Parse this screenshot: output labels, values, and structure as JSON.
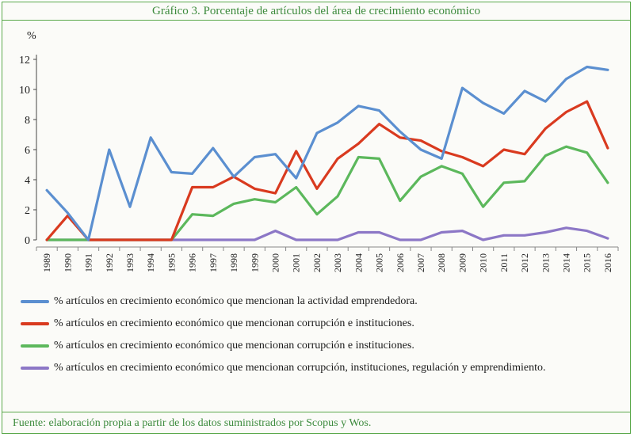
{
  "title": "Gráfico 3. Porcentaje de artículos del área de crecimiento económico",
  "source": "Fuente: elaboración propia a partir de los datos suministrados por Scopus y Wos.",
  "colors": {
    "frame": "#5aa84a",
    "title_text": "#3d8b3d"
  },
  "chart_data": {
    "type": "line",
    "ylabel": "%",
    "ylim": [
      0,
      12
    ],
    "yticks": [
      "0",
      "2",
      "4",
      "6",
      "8",
      "10",
      "12"
    ],
    "x": [
      "1989",
      "1990",
      "1991",
      "1992",
      "1993",
      "1994",
      "1995",
      "1996",
      "1997",
      "1998",
      "1999",
      "2000",
      "2001",
      "2002",
      "2003",
      "2004",
      "2005",
      "2006",
      "2007",
      "2008",
      "2009",
      "2010",
      "2011",
      "2012",
      "2013",
      "2014",
      "2015",
      "2016"
    ],
    "grid": false,
    "legend_position": "bottom",
    "series": [
      {
        "name": "% artículos en crecimiento económico que mencionan la actividad emprendedora.",
        "color": "#5b8fd0",
        "values": [
          3.3,
          1.8,
          0.0,
          6.0,
          2.2,
          6.8,
          4.5,
          4.4,
          6.1,
          4.2,
          5.5,
          5.7,
          4.1,
          7.1,
          7.8,
          8.9,
          8.6,
          7.2,
          6.0,
          5.4,
          10.1,
          9.1,
          8.4,
          9.9,
          9.2,
          10.7,
          11.5,
          11.3
        ]
      },
      {
        "name": "% artículos en crecimiento económico que mencionan corrupción e instituciones.",
        "color": "#d93a1f",
        "values": [
          0.0,
          1.6,
          0.0,
          0.0,
          0.0,
          0.0,
          0.0,
          3.5,
          3.5,
          4.2,
          3.4,
          3.1,
          5.9,
          3.4,
          5.4,
          6.4,
          7.7,
          6.8,
          6.6,
          5.9,
          5.5,
          4.9,
          6.0,
          5.7,
          7.4,
          8.5,
          9.2,
          6.1
        ]
      },
      {
        "name": "% artículos en crecimiento económico que mencionan corrupción e instituciones.",
        "color": "#5cb85c",
        "values": [
          0.0,
          0.0,
          0.0,
          0.0,
          0.0,
          0.0,
          0.0,
          1.7,
          1.6,
          2.4,
          2.7,
          2.5,
          3.5,
          1.7,
          2.9,
          5.5,
          5.4,
          2.6,
          4.2,
          4.9,
          4.4,
          2.2,
          3.8,
          3.9,
          5.6,
          6.2,
          5.8,
          3.8
        ]
      },
      {
        "name": "% artículos en crecimiento económico que mencionan corrupción, instituciones, regulación y emprendimiento.",
        "color": "#8c77c6",
        "values": [
          0.0,
          0.0,
          0.0,
          0.0,
          0.0,
          0.0,
          0.0,
          0.0,
          0.0,
          0.0,
          0.0,
          0.6,
          0.0,
          0.0,
          0.0,
          0.5,
          0.5,
          0.0,
          0.0,
          0.5,
          0.6,
          0.0,
          0.3,
          0.3,
          0.5,
          0.8,
          0.6,
          0.1
        ]
      }
    ]
  }
}
